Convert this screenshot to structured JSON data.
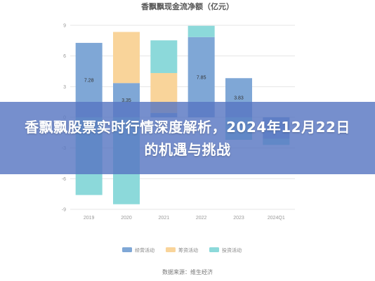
{
  "headline": "香飘飘股票实时行情深度解析，2024年12月22日的机遇与挑战",
  "chart_data": {
    "type": "bar",
    "stacked": true,
    "title": "香飘飘现金流净额（亿元）",
    "categories": [
      "2019",
      "2020",
      "2021",
      "2022",
      "2023",
      "2024Q1"
    ],
    "yticks": [
      9,
      6,
      3,
      0,
      -3,
      -6,
      -9
    ],
    "ylim": [
      -9,
      9
    ],
    "grid": true,
    "legend_position": "bottom",
    "series": [
      {
        "name": "经营活动",
        "color": "#7fa7d6",
        "values": [
          7.28,
          3.35,
          0.43,
          7.85,
          3.83,
          -2.1
        ]
      },
      {
        "name": "筹资活动",
        "color": "#f9d49a",
        "values": [
          0,
          5.0,
          3.9,
          0,
          0,
          0
        ]
      },
      {
        "name": "投资活动",
        "color": "#8cd9da",
        "values": [
          -7.6,
          -8.5,
          3.2,
          1.1,
          -2.2,
          -0.6
        ]
      }
    ],
    "data_labels": [
      {
        "category": "2019",
        "text": "7.28"
      },
      {
        "category": "2020",
        "text": "3.35"
      },
      {
        "category": "2022",
        "text": "7.85"
      },
      {
        "category": "2023",
        "text": "3.83"
      }
    ],
    "source": "数据来源：维生经济"
  }
}
